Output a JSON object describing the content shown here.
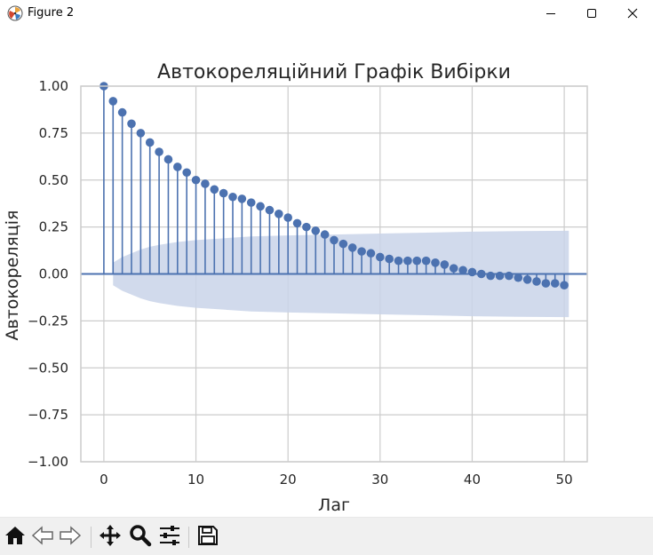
{
  "window": {
    "title": "Figure 2",
    "icons": {
      "app": "matplotlib-icon",
      "minimize": "minimize-icon",
      "maximize": "maximize-icon",
      "close": "close-icon"
    }
  },
  "toolbar": {
    "buttons": [
      "home-icon",
      "back-arrow-icon",
      "forward-arrow-icon",
      "pan-icon",
      "zoom-icon",
      "configure-subplots-icon",
      "save-icon"
    ]
  },
  "colors": {
    "stem": "#4c72b0",
    "band": "#c9d4e9",
    "grid": "#cccccc",
    "axes_edge": "#cccccc"
  },
  "chart_data": {
    "type": "stem",
    "title": "Автокореляційний Графік Вибірки",
    "xlabel": "Лаг",
    "ylabel": "Автокореляція",
    "xlim": [
      -2.5,
      52.5
    ],
    "ylim": [
      -1.0,
      1.0
    ],
    "xticks": [
      0,
      10,
      20,
      30,
      40,
      50
    ],
    "xtick_labels": [
      "0",
      "10",
      "20",
      "30",
      "40",
      "50"
    ],
    "yticks": [
      1.0,
      0.75,
      0.5,
      0.25,
      0.0,
      -0.25,
      -0.5,
      -0.75,
      -1.0
    ],
    "ytick_labels": [
      "1.00",
      "0.75",
      "0.50",
      "0.25",
      "0.00",
      "−0.25",
      "−0.50",
      "−0.75",
      "−1.00"
    ],
    "grid": true,
    "lags": [
      0,
      1,
      2,
      3,
      4,
      5,
      6,
      7,
      8,
      9,
      10,
      11,
      12,
      13,
      14,
      15,
      16,
      17,
      18,
      19,
      20,
      21,
      22,
      23,
      24,
      25,
      26,
      27,
      28,
      29,
      30,
      31,
      32,
      33,
      34,
      35,
      36,
      37,
      38,
      39,
      40,
      41,
      42,
      43,
      44,
      45,
      46,
      47,
      48,
      49,
      50
    ],
    "acf": [
      1.0,
      0.92,
      0.86,
      0.8,
      0.75,
      0.7,
      0.65,
      0.61,
      0.57,
      0.54,
      0.5,
      0.48,
      0.45,
      0.43,
      0.41,
      0.4,
      0.38,
      0.36,
      0.34,
      0.32,
      0.3,
      0.27,
      0.25,
      0.23,
      0.21,
      0.18,
      0.16,
      0.14,
      0.12,
      0.11,
      0.09,
      0.08,
      0.07,
      0.07,
      0.07,
      0.07,
      0.06,
      0.05,
      0.03,
      0.02,
      0.01,
      0.0,
      -0.01,
      -0.01,
      -0.01,
      -0.02,
      -0.03,
      -0.04,
      -0.05,
      -0.05,
      -0.06
    ],
    "confidence_band": {
      "lags": [
        1,
        2,
        3,
        4,
        5,
        6,
        8,
        10,
        13,
        16,
        20,
        25,
        30,
        35,
        40,
        45,
        50.5
      ],
      "upper": [
        0.06,
        0.09,
        0.11,
        0.13,
        0.145,
        0.155,
        0.17,
        0.18,
        0.19,
        0.2,
        0.205,
        0.21,
        0.215,
        0.22,
        0.225,
        0.228,
        0.23
      ]
    }
  }
}
